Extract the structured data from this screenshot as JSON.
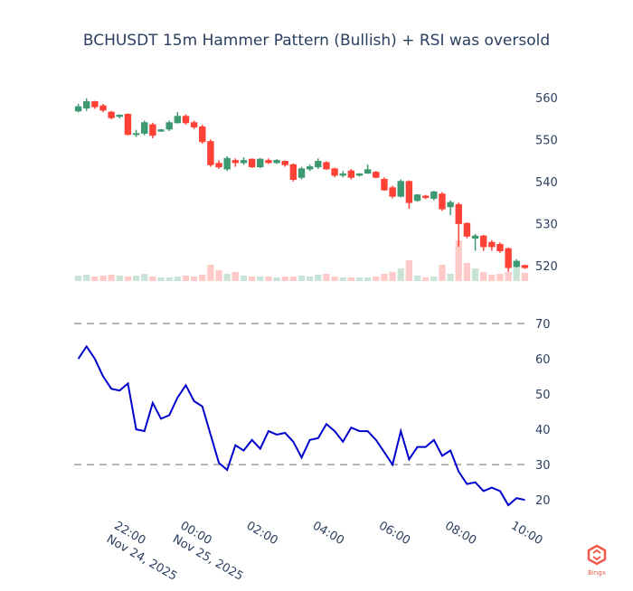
{
  "chart_data": [
    {
      "type": "candlestick",
      "title": "BCHUSDT   15m Hammer Pattern (Bullish) + RSI was oversold",
      "x": [
        "20:30",
        "20:45",
        "21:00",
        "21:15",
        "21:30",
        "21:45",
        "22:00",
        "22:15",
        "22:30",
        "22:45",
        "23:00",
        "23:15",
        "23:30",
        "23:45",
        "00:00",
        "00:15",
        "00:30",
        "00:45",
        "01:00",
        "01:15",
        "01:30",
        "01:45",
        "02:00",
        "02:15",
        "02:30",
        "02:45",
        "03:00",
        "03:15",
        "03:30",
        "03:45",
        "04:00",
        "04:15",
        "04:30",
        "04:45",
        "05:00",
        "05:15",
        "05:30",
        "05:45",
        "06:00",
        "06:15",
        "06:30",
        "06:45",
        "07:00",
        "07:15",
        "07:30",
        "07:45",
        "08:00",
        "08:15",
        "08:30",
        "08:45",
        "09:00",
        "09:15",
        "09:30",
        "09:45",
        "10:00"
      ],
      "open": [
        556.8,
        557.5,
        559,
        558,
        556.5,
        555.5,
        556,
        551.3,
        551.5,
        553.5,
        552,
        552.5,
        554,
        555.5,
        554,
        553,
        549.5,
        544.3,
        543,
        545,
        544.5,
        545.3,
        543.5,
        545,
        544.5,
        544.8,
        544,
        541,
        543,
        543.5,
        544.5,
        543,
        541.5,
        542.5,
        541.5,
        542,
        542.2,
        540.5,
        538.5,
        536.5,
        540,
        535.5,
        536.5,
        536,
        537,
        534,
        534.5,
        530,
        526.5,
        527,
        525.5,
        525,
        524,
        519.8,
        520
      ],
      "high": [
        558.5,
        559.8,
        559.2,
        558.5,
        556.8,
        556,
        556.2,
        552.3,
        554.5,
        554,
        552.5,
        554.5,
        556.5,
        556,
        554.5,
        553.5,
        550,
        545,
        546,
        545.5,
        545.8,
        545.5,
        545.6,
        545.5,
        545.3,
        545,
        544.3,
        543.5,
        544,
        545.5,
        544.8,
        543.3,
        542.5,
        543,
        542,
        544,
        542.5,
        541,
        539,
        540.5,
        540.3,
        537,
        536.8,
        537.8,
        537.5,
        535.5,
        535,
        530.3,
        527.5,
        527.3,
        526,
        525.5,
        524.3,
        521.5,
        520.2
      ],
      "low": [
        556.5,
        556.8,
        557.3,
        556.5,
        554.8,
        555,
        551,
        550.6,
        551,
        550.3,
        551.8,
        552,
        553.8,
        553.5,
        552.5,
        549,
        543.5,
        543,
        542.5,
        543.5,
        544,
        543.2,
        543.2,
        544.2,
        544.2,
        543.5,
        540,
        540.5,
        542.5,
        543,
        542.8,
        541,
        541,
        540.5,
        541.2,
        541.8,
        540.8,
        537.8,
        536,
        536.2,
        533.5,
        535.2,
        535.8,
        535.5,
        533,
        532,
        524.5,
        526.5,
        523.5,
        523.5,
        523.5,
        523,
        518.5,
        519.5,
        519.2
      ],
      "close": [
        557.8,
        559,
        557.8,
        557,
        555.2,
        555.8,
        551.2,
        551.4,
        554,
        551,
        552.3,
        554,
        555.5,
        554,
        553,
        549.5,
        544,
        543.5,
        545.5,
        544.5,
        545,
        543.5,
        545.3,
        544.5,
        545,
        544,
        540.5,
        543,
        543.5,
        544.8,
        543,
        541.5,
        541.8,
        541,
        541.8,
        542.8,
        541,
        538,
        536.5,
        540,
        535,
        536.8,
        536.2,
        537.5,
        533.5,
        535,
        530,
        527,
        527,
        524.5,
        524.5,
        523.5,
        519.5,
        521,
        519.5
      ],
      "volume": [
        6,
        7,
        5,
        6,
        7,
        6,
        5,
        6,
        8,
        5,
        4,
        4,
        5,
        6,
        5,
        7,
        18,
        12,
        8,
        10,
        6,
        5,
        5,
        5,
        4,
        5,
        5,
        6,
        5,
        7,
        8,
        5,
        4,
        4,
        4,
        4,
        5,
        8,
        10,
        14,
        23,
        6,
        4,
        5,
        18,
        8,
        45,
        20,
        14,
        10,
        7,
        8,
        10,
        18,
        9
      ],
      "increasing_color": "#3d9970",
      "decreasing_color": "#ff4136",
      "ylim": [
        516.3,
        561.7
      ],
      "yticks": [
        520,
        530,
        540,
        550,
        560
      ]
    },
    {
      "type": "line",
      "values": [
        60,
        63.5,
        60,
        55,
        51.5,
        51,
        53,
        40,
        39.5,
        47.5,
        43,
        44,
        49,
        52.5,
        48,
        46.5,
        38.5,
        30.5,
        28.5,
        35.5,
        34,
        37,
        34.5,
        39.5,
        38.5,
        39,
        36.5,
        32,
        37,
        37.5,
        41.5,
        39.5,
        36.5,
        40.5,
        39.5,
        39.5,
        37,
        33.5,
        30,
        39.5,
        31.5,
        35,
        35,
        37,
        32.5,
        34,
        28,
        24.5,
        25,
        22.5,
        23.5,
        22.5,
        18.5,
        20.5,
        20
      ],
      "color": "#0000cc",
      "ylim": [
        18,
        70
      ],
      "yticks": [
        20,
        30,
        40,
        50,
        60,
        70
      ],
      "hlines": [
        70,
        30
      ],
      "xticks": [
        {
          "value": "22:00",
          "label": [
            "22:00",
            "Nov 24, 2025"
          ]
        },
        {
          "value": "00:00",
          "label": [
            "00:00",
            "Nov 25, 2025"
          ]
        },
        "02:00",
        "04:00",
        "06:00",
        "08:00",
        "10:00"
      ]
    }
  ],
  "watermark": "Bingx"
}
